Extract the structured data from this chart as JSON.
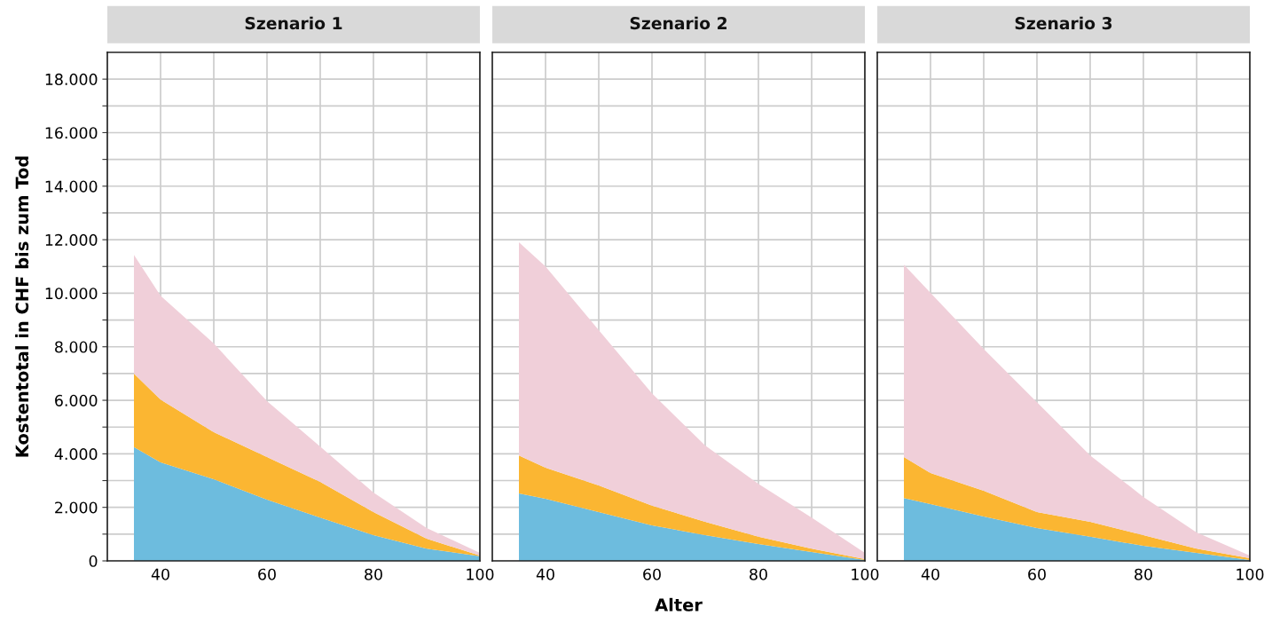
{
  "chart_data": [
    {
      "type": "area",
      "stacked": true,
      "title": "Szenario 1",
      "ylabel": "Kostentotal in CHF bis zum Tod",
      "x": [
        35,
        40,
        50,
        60,
        70,
        80,
        90,
        100
      ],
      "series": [
        {
          "color": "#6dbcde",
          "values": [
            4250,
            3680,
            3050,
            2290,
            1620,
            960,
            460,
            170
          ]
        },
        {
          "color": "#fbb632",
          "values": [
            2750,
            2350,
            1760,
            1590,
            1330,
            860,
            370,
            30
          ]
        },
        {
          "color": "#f0cfd9",
          "values": [
            4430,
            3880,
            3310,
            2090,
            1320,
            730,
            400,
            100
          ]
        }
      ],
      "xlim": [
        30,
        100
      ],
      "ylim": [
        0,
        19000
      ],
      "xticks": [
        40,
        {
          "value": 50,
          "label": null
        },
        60,
        {
          "value": 70,
          "label": null
        },
        80,
        {
          "value": 90,
          "label": null
        },
        100
      ],
      "yticks": [
        {
          "value": 0,
          "label": "0"
        },
        {
          "value": 1000,
          "label": null
        },
        {
          "value": 2000,
          "label": "2.000"
        },
        {
          "value": 3000,
          "label": null
        },
        {
          "value": 4000,
          "label": "4.000"
        },
        {
          "value": 5000,
          "label": null
        },
        {
          "value": 6000,
          "label": "6.000"
        },
        {
          "value": 7000,
          "label": null
        },
        {
          "value": 8000,
          "label": "8.000"
        },
        {
          "value": 9000,
          "label": null
        },
        {
          "value": 10000,
          "label": "10.000"
        },
        {
          "value": 11000,
          "label": null
        },
        {
          "value": 12000,
          "label": "12.000"
        },
        {
          "value": 13000,
          "label": null
        },
        {
          "value": 14000,
          "label": "14.000"
        },
        {
          "value": 15000,
          "label": null
        },
        {
          "value": 16000,
          "label": "16.000"
        },
        {
          "value": 17000,
          "label": null
        },
        {
          "value": 18000,
          "label": "18.000"
        }
      ],
      "grid": true
    },
    {
      "type": "area",
      "stacked": true,
      "title": "Szenario 2",
      "xlabel": "Alter",
      "x": [
        35,
        40,
        50,
        60,
        70,
        80,
        90,
        100
      ],
      "series": [
        {
          "color": "#6dbcde",
          "values": [
            2520,
            2320,
            1820,
            1330,
            960,
            630,
            330,
            30
          ]
        },
        {
          "color": "#fbb632",
          "values": [
            1420,
            1160,
            1000,
            730,
            500,
            270,
            130,
            40
          ]
        },
        {
          "color": "#f0cfd9",
          "values": [
            7960,
            7520,
            5800,
            4200,
            2850,
            1980,
            1160,
            230
          ]
        }
      ],
      "xlim": [
        30,
        100
      ],
      "ylim": [
        0,
        19000
      ],
      "xticks": [
        40,
        {
          "value": 50,
          "label": null
        },
        60,
        {
          "value": 70,
          "label": null
        },
        80,
        {
          "value": 90,
          "label": null
        },
        100
      ],
      "yticks": [
        0,
        1000,
        2000,
        3000,
        4000,
        5000,
        6000,
        7000,
        8000,
        9000,
        10000,
        11000,
        12000,
        13000,
        14000,
        15000,
        16000,
        17000,
        18000
      ],
      "grid": true,
      "tick_labels": "x"
    },
    {
      "type": "area",
      "stacked": true,
      "title": "Szenario 3",
      "x": [
        35,
        40,
        50,
        60,
        70,
        80,
        90,
        100
      ],
      "series": [
        {
          "color": "#6dbcde",
          "values": [
            2350,
            2120,
            1660,
            1230,
            900,
            560,
            300,
            30
          ]
        },
        {
          "color": "#fbb632",
          "values": [
            1530,
            1160,
            960,
            590,
            560,
            400,
            160,
            70
          ]
        },
        {
          "color": "#f0cfd9",
          "values": [
            7190,
            6730,
            5300,
            4110,
            2480,
            1430,
            600,
            100
          ]
        }
      ],
      "xlim": [
        30,
        100
      ],
      "ylim": [
        0,
        19000
      ],
      "xticks": [
        40,
        {
          "value": 50,
          "label": null
        },
        60,
        {
          "value": 70,
          "label": null
        },
        80,
        {
          "value": 90,
          "label": null
        },
        100
      ],
      "yticks": [
        0,
        1000,
        2000,
        3000,
        4000,
        5000,
        6000,
        7000,
        8000,
        9000,
        10000,
        11000,
        12000,
        13000,
        14000,
        15000,
        16000,
        17000,
        18000
      ],
      "grid": true,
      "tick_labels": "x"
    }
  ]
}
